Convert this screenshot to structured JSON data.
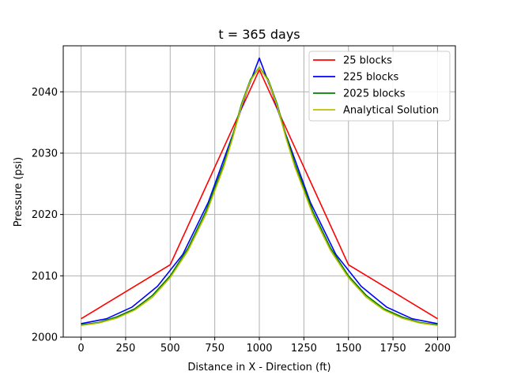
{
  "chart_data": {
    "type": "line",
    "title": "t = 365 days",
    "xlabel": "Distance in X - Direction (ft)",
    "ylabel": "Pressure (psi)",
    "xlim": [
      -100,
      2100
    ],
    "ylim": [
      2000,
      2047.5
    ],
    "xticks": [
      0,
      250,
      500,
      750,
      1000,
      1250,
      1500,
      1750,
      2000
    ],
    "yticks": [
      2000,
      2010,
      2020,
      2030,
      2040
    ],
    "grid": true,
    "legend_position": "top-right",
    "series": [
      {
        "name": "25 blocks",
        "color": "#ff0000",
        "x": [
          0,
          500,
          1000,
          1500,
          2000
        ],
        "y": [
          2003.0,
          2011.8,
          2043.6,
          2011.8,
          2003.0
        ]
      },
      {
        "name": "225 blocks",
        "color": "#0000ff",
        "x": [
          0,
          143,
          286,
          429,
          571,
          714,
          857,
          929,
          1000,
          1071,
          1143,
          1286,
          1429,
          1571,
          1714,
          1857,
          2000
        ],
        "y": [
          2002.2,
          2003.0,
          2004.9,
          2008.3,
          2013.5,
          2022.0,
          2033.5,
          2040.0,
          2045.5,
          2040.0,
          2033.5,
          2022.0,
          2013.5,
          2008.3,
          2004.9,
          2003.0,
          2002.2
        ]
      },
      {
        "name": "2025 blocks",
        "color": "#008000",
        "x": [
          0,
          100,
          200,
          300,
          400,
          500,
          600,
          700,
          800,
          850,
          900,
          950,
          1000,
          1050,
          1100,
          1150,
          1200,
          1300,
          1400,
          1500,
          1600,
          1700,
          1800,
          1900,
          2000
        ],
        "y": [
          2002.0,
          2002.4,
          2003.3,
          2004.6,
          2006.8,
          2010.0,
          2014.5,
          2020.5,
          2028.2,
          2032.8,
          2038.0,
          2042.0,
          2044.0,
          2042.0,
          2038.0,
          2032.8,
          2028.2,
          2020.5,
          2014.5,
          2010.0,
          2006.8,
          2004.6,
          2003.3,
          2002.4,
          2002.0
        ]
      },
      {
        "name": "Analytical Solution",
        "color": "#bfbf00",
        "x": [
          0,
          100,
          200,
          300,
          400,
          500,
          600,
          700,
          800,
          850,
          900,
          950,
          1000,
          1050,
          1100,
          1150,
          1200,
          1300,
          1400,
          1500,
          1600,
          1700,
          1800,
          1900,
          2000
        ],
        "y": [
          2001.9,
          2002.3,
          2003.1,
          2004.4,
          2006.5,
          2009.7,
          2014.1,
          2020.0,
          2027.7,
          2032.4,
          2037.7,
          2041.8,
          2043.9,
          2041.8,
          2037.7,
          2032.4,
          2027.7,
          2020.0,
          2014.1,
          2009.7,
          2006.5,
          2004.4,
          2003.1,
          2002.3,
          2001.9
        ]
      }
    ]
  }
}
